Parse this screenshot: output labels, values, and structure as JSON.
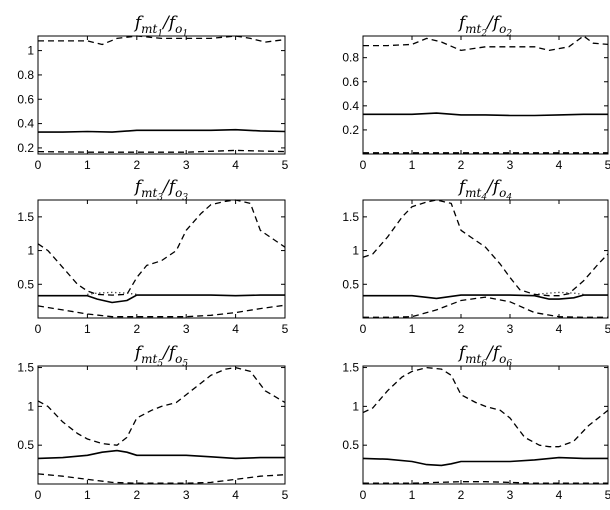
{
  "chart_data": [
    {
      "type": "line",
      "title": "f_{mt_1}/f_{o_1}",
      "title_base": "f",
      "title_sub1": "mt",
      "title_subsub1": "1",
      "title_slash": "/f",
      "title_sub2": "o",
      "title_subsub2": "1",
      "xlim": [
        0,
        5
      ],
      "ylim": [
        0.15,
        1.12
      ],
      "xticks": [
        "0",
        "1",
        "2",
        "3",
        "4",
        "5"
      ],
      "yticks": [
        "0.2",
        "0.4",
        "0.6",
        "0.8",
        "1"
      ],
      "ytick_values": [
        0.2,
        0.4,
        0.6,
        0.8,
        1.0
      ],
      "series": [
        {
          "style": "solid",
          "x": [
            0,
            0.5,
            1.0,
            1.5,
            2.0,
            2.5,
            3.0,
            3.5,
            4.0,
            4.5,
            5.0
          ],
          "y": [
            0.33,
            0.33,
            0.335,
            0.33,
            0.345,
            0.345,
            0.345,
            0.345,
            0.35,
            0.34,
            0.335
          ]
        },
        {
          "style": "dashed",
          "x": [
            0,
            0.5,
            1.0,
            1.3,
            1.6,
            2.0,
            2.5,
            3.0,
            3.5,
            4.0,
            4.3,
            4.6,
            5.0
          ],
          "y": [
            1.08,
            1.08,
            1.08,
            1.05,
            1.1,
            1.12,
            1.1,
            1.1,
            1.1,
            1.12,
            1.1,
            1.07,
            1.09
          ]
        },
        {
          "style": "dashed",
          "x": [
            0,
            1.0,
            2.0,
            3.0,
            4.0,
            4.5,
            5.0
          ],
          "y": [
            0.17,
            0.165,
            0.165,
            0.165,
            0.18,
            0.175,
            0.17
          ]
        }
      ]
    },
    {
      "type": "line",
      "title": "f_{mt_2}/f_{o_2}",
      "title_base": "f",
      "title_sub1": "mt",
      "title_subsub1": "2",
      "title_slash": "/f",
      "title_sub2": "o",
      "title_subsub2": "2",
      "xlim": [
        0,
        5
      ],
      "ylim": [
        0.0,
        0.98
      ],
      "xticks": [
        "0",
        "1",
        "2",
        "3",
        "4",
        "5"
      ],
      "yticks": [
        "0.2",
        "0.4",
        "0.6",
        "0.8"
      ],
      "ytick_values": [
        0.2,
        0.4,
        0.6,
        0.8
      ],
      "series": [
        {
          "style": "solid",
          "x": [
            0,
            0.5,
            1.0,
            1.5,
            2.0,
            2.5,
            3.0,
            3.5,
            4.0,
            4.5,
            5.0
          ],
          "y": [
            0.33,
            0.33,
            0.33,
            0.34,
            0.325,
            0.325,
            0.32,
            0.32,
            0.325,
            0.33,
            0.33
          ]
        },
        {
          "style": "dashed",
          "x": [
            0,
            0.5,
            1.0,
            1.3,
            1.6,
            2.0,
            2.5,
            3.0,
            3.5,
            3.8,
            4.2,
            4.5,
            4.7,
            5.0
          ],
          "y": [
            0.9,
            0.9,
            0.91,
            0.96,
            0.93,
            0.86,
            0.89,
            0.89,
            0.89,
            0.86,
            0.89,
            0.98,
            0.92,
            0.91
          ]
        },
        {
          "style": "dashed",
          "x": [
            0,
            1.0,
            2.0,
            3.0,
            4.0,
            5.0
          ],
          "y": [
            0.01,
            0.01,
            0.01,
            0.01,
            0.01,
            0.01
          ]
        }
      ]
    },
    {
      "type": "line",
      "title": "f_{mt_3}/f_{o_3}",
      "title_base": "f",
      "title_sub1": "mt",
      "title_subsub1": "3",
      "title_slash": "/f",
      "title_sub2": "o",
      "title_subsub2": "3",
      "xlim": [
        0,
        5
      ],
      "ylim": [
        0.0,
        1.75
      ],
      "xticks": [
        "0",
        "1",
        "2",
        "3",
        "4",
        "5"
      ],
      "yticks": [
        "0.5",
        "1",
        "1.5"
      ],
      "ytick_values": [
        0.5,
        1.0,
        1.5
      ],
      "series": [
        {
          "style": "solid",
          "x": [
            0,
            0.5,
            1.0,
            1.2,
            1.5,
            1.8,
            2.0,
            2.5,
            3.0,
            3.5,
            4.0,
            4.5,
            5.0
          ],
          "y": [
            0.33,
            0.33,
            0.33,
            0.28,
            0.23,
            0.26,
            0.34,
            0.34,
            0.34,
            0.34,
            0.33,
            0.34,
            0.34
          ]
        },
        {
          "style": "dashed",
          "x": [
            0,
            0.2,
            0.5,
            0.8,
            1.0,
            1.2,
            1.5,
            1.8,
            2.0,
            2.2,
            2.5,
            2.8,
            3.0,
            3.3,
            3.5,
            3.8,
            4.0,
            4.3,
            4.5,
            4.7,
            5.0
          ],
          "y": [
            1.1,
            1.0,
            0.75,
            0.5,
            0.4,
            0.35,
            0.34,
            0.35,
            0.6,
            0.78,
            0.85,
            1.0,
            1.3,
            1.55,
            1.68,
            1.73,
            1.75,
            1.7,
            1.3,
            1.2,
            1.05
          ]
        },
        {
          "style": "dashed",
          "x": [
            0,
            0.5,
            1.0,
            1.5,
            2.0,
            2.5,
            3.0,
            3.5,
            4.0,
            4.5,
            5.0
          ],
          "y": [
            0.18,
            0.12,
            0.06,
            0.02,
            0.02,
            0.02,
            0.02,
            0.04,
            0.08,
            0.14,
            0.19
          ]
        },
        {
          "style": "dotted",
          "x": [
            1.0,
            1.2,
            1.5,
            1.8,
            2.0
          ],
          "y": [
            0.35,
            0.37,
            0.38,
            0.37,
            0.35
          ]
        }
      ]
    },
    {
      "type": "line",
      "title": "f_{mt_4}/f_{o_4}",
      "title_base": "f",
      "title_sub1": "mt",
      "title_subsub1": "4",
      "title_slash": "/f",
      "title_sub2": "o",
      "title_subsub2": "4",
      "xlim": [
        0,
        5
      ],
      "ylim": [
        0.0,
        1.75
      ],
      "xticks": [
        "0",
        "1",
        "2",
        "3",
        "4",
        "5"
      ],
      "yticks": [
        "0.5",
        "1",
        "1.5"
      ],
      "ytick_values": [
        0.5,
        1.0,
        1.5
      ],
      "series": [
        {
          "style": "solid",
          "x": [
            0,
            0.5,
            1.0,
            1.5,
            2.0,
            2.5,
            3.0,
            3.5,
            3.8,
            4.0,
            4.3,
            4.5,
            5.0
          ],
          "y": [
            0.33,
            0.33,
            0.33,
            0.29,
            0.34,
            0.34,
            0.34,
            0.33,
            0.28,
            0.28,
            0.3,
            0.34,
            0.34
          ]
        },
        {
          "style": "dashed",
          "x": [
            0,
            0.2,
            0.5,
            0.8,
            1.0,
            1.3,
            1.5,
            1.8,
            2.0,
            2.2,
            2.5,
            2.8,
            3.0,
            3.2,
            3.5,
            3.8,
            4.0,
            4.2,
            4.5,
            4.8,
            5.0
          ],
          "y": [
            0.9,
            0.95,
            1.2,
            1.5,
            1.65,
            1.72,
            1.75,
            1.7,
            1.3,
            1.2,
            1.05,
            0.8,
            0.6,
            0.42,
            0.35,
            0.33,
            0.33,
            0.36,
            0.55,
            0.8,
            0.95
          ]
        },
        {
          "style": "dashed",
          "x": [
            0,
            0.5,
            1.0,
            1.5,
            2.0,
            2.5,
            3.0,
            3.5,
            4.0,
            4.5,
            5.0
          ],
          "y": [
            0.01,
            0.01,
            0.02,
            0.12,
            0.26,
            0.31,
            0.24,
            0.08,
            0.02,
            0.01,
            0.01
          ]
        },
        {
          "style": "dotted",
          "x": [
            3.5,
            3.8,
            4.0,
            4.3,
            4.5
          ],
          "y": [
            0.35,
            0.37,
            0.38,
            0.37,
            0.35
          ]
        }
      ]
    },
    {
      "type": "line",
      "title": "f_{mt_5}/f_{o_5}",
      "title_base": "f",
      "title_sub1": "mt",
      "title_subsub1": "5",
      "title_slash": "/f",
      "title_sub2": "o",
      "title_subsub2": "5",
      "xlim": [
        0,
        5
      ],
      "ylim": [
        0.0,
        1.52
      ],
      "xticks": [
        "0",
        "1",
        "2",
        "3",
        "4",
        "5"
      ],
      "yticks": [
        "0.5",
        "1",
        "1.5"
      ],
      "ytick_values": [
        0.5,
        1.0,
        1.5
      ],
      "series": [
        {
          "style": "solid",
          "x": [
            0,
            0.5,
            1.0,
            1.3,
            1.6,
            1.8,
            2.0,
            2.5,
            3.0,
            3.5,
            4.0,
            4.5,
            5.0
          ],
          "y": [
            0.33,
            0.34,
            0.37,
            0.41,
            0.43,
            0.41,
            0.37,
            0.37,
            0.37,
            0.35,
            0.33,
            0.34,
            0.34
          ]
        },
        {
          "style": "dashed",
          "x": [
            0,
            0.2,
            0.5,
            0.8,
            1.0,
            1.3,
            1.6,
            1.8,
            2.0,
            2.3,
            2.5,
            2.8,
            3.0,
            3.3,
            3.5,
            3.8,
            4.0,
            4.3,
            4.6,
            5.0
          ],
          "y": [
            1.07,
            1.0,
            0.8,
            0.65,
            0.58,
            0.52,
            0.5,
            0.6,
            0.85,
            0.95,
            1.0,
            1.05,
            1.15,
            1.3,
            1.4,
            1.48,
            1.5,
            1.45,
            1.2,
            1.05
          ]
        },
        {
          "style": "dashed",
          "x": [
            0,
            0.5,
            1.0,
            1.5,
            2.0,
            2.5,
            3.0,
            3.5,
            4.0,
            4.5,
            5.0
          ],
          "y": [
            0.13,
            0.1,
            0.06,
            0.02,
            0.01,
            0.01,
            0.01,
            0.02,
            0.06,
            0.1,
            0.12
          ]
        }
      ]
    },
    {
      "type": "line",
      "title": "f_{mt_6}/f_{o_6}",
      "title_base": "f",
      "title_sub1": "mt",
      "title_subsub1": "6",
      "title_slash": "/f",
      "title_sub2": "o",
      "title_subsub2": "6",
      "xlim": [
        0,
        5
      ],
      "ylim": [
        0.0,
        1.52
      ],
      "xticks": [
        "0",
        "1",
        "2",
        "3",
        "4",
        "5"
      ],
      "yticks": [
        "0.5",
        "1",
        "1.5"
      ],
      "ytick_values": [
        0.5,
        1.0,
        1.5
      ],
      "series": [
        {
          "style": "solid",
          "x": [
            0,
            0.5,
            1.0,
            1.3,
            1.6,
            1.8,
            2.0,
            2.5,
            3.0,
            3.5,
            4.0,
            4.5,
            5.0
          ],
          "y": [
            0.33,
            0.32,
            0.29,
            0.25,
            0.24,
            0.26,
            0.29,
            0.29,
            0.29,
            0.31,
            0.34,
            0.33,
            0.33
          ]
        },
        {
          "style": "dashed",
          "x": [
            0,
            0.2,
            0.5,
            0.8,
            1.0,
            1.3,
            1.6,
            1.8,
            2.0,
            2.3,
            2.5,
            2.8,
            3.0,
            3.3,
            3.6,
            3.8,
            4.0,
            4.3,
            4.6,
            5.0
          ],
          "y": [
            0.92,
            0.98,
            1.2,
            1.38,
            1.45,
            1.5,
            1.48,
            1.4,
            1.15,
            1.05,
            1.0,
            0.95,
            0.85,
            0.6,
            0.5,
            0.48,
            0.48,
            0.55,
            0.75,
            0.95
          ]
        },
        {
          "style": "dashed",
          "x": [
            0,
            0.5,
            1.0,
            1.5,
            2.0,
            2.5,
            3.0,
            3.5,
            4.0,
            4.5,
            5.0
          ],
          "y": [
            0.01,
            0.01,
            0.01,
            0.02,
            0.03,
            0.03,
            0.02,
            0.01,
            0.01,
            0.01,
            0.01
          ]
        }
      ]
    }
  ]
}
